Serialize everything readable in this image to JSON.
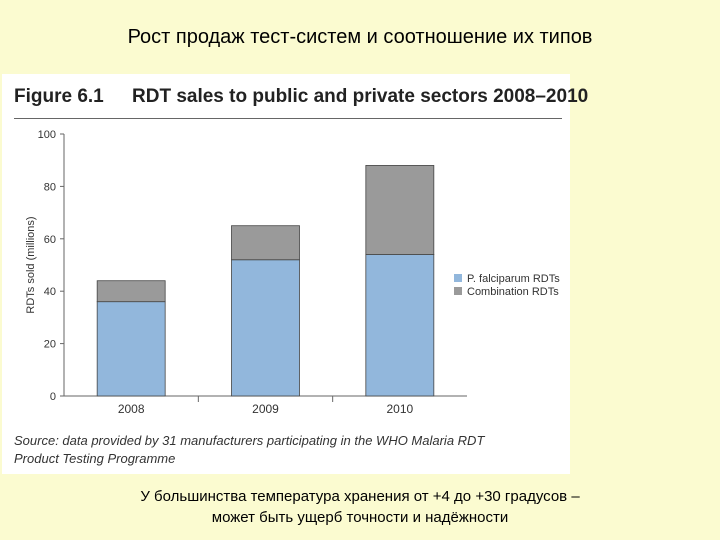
{
  "slide": {
    "title": "Рост продаж тест-систем и соотношение их типов",
    "footnote_line1": "У большинства температура хранения от +4 до +30 градусов –",
    "footnote_line2": "может быть ущерб точности и надёжности"
  },
  "figure": {
    "number": "Figure 6.1",
    "title": "RDT sales to public and private sectors 2008–2010",
    "source_line1": "Source: data provided by 31 manufacturers participating in the WHO Malaria RDT",
    "source_line2": "Product Testing Programme"
  },
  "chart_data": {
    "type": "bar",
    "stacked": true,
    "categories": [
      "2008",
      "2009",
      "2010"
    ],
    "series": [
      {
        "name": "P. falciparum RDTs",
        "values": [
          36,
          52,
          54
        ],
        "color": "#92b7dc"
      },
      {
        "name": "Combination RDTs",
        "values": [
          8,
          13,
          34
        ],
        "color": "#9a9a9a"
      }
    ],
    "ylabel": "RDTs sold (millions)",
    "ylim": [
      0,
      100
    ],
    "yticks": [
      "0",
      "20",
      "40",
      "60",
      "80",
      "100"
    ],
    "grid": false,
    "legend_position": "right"
  }
}
